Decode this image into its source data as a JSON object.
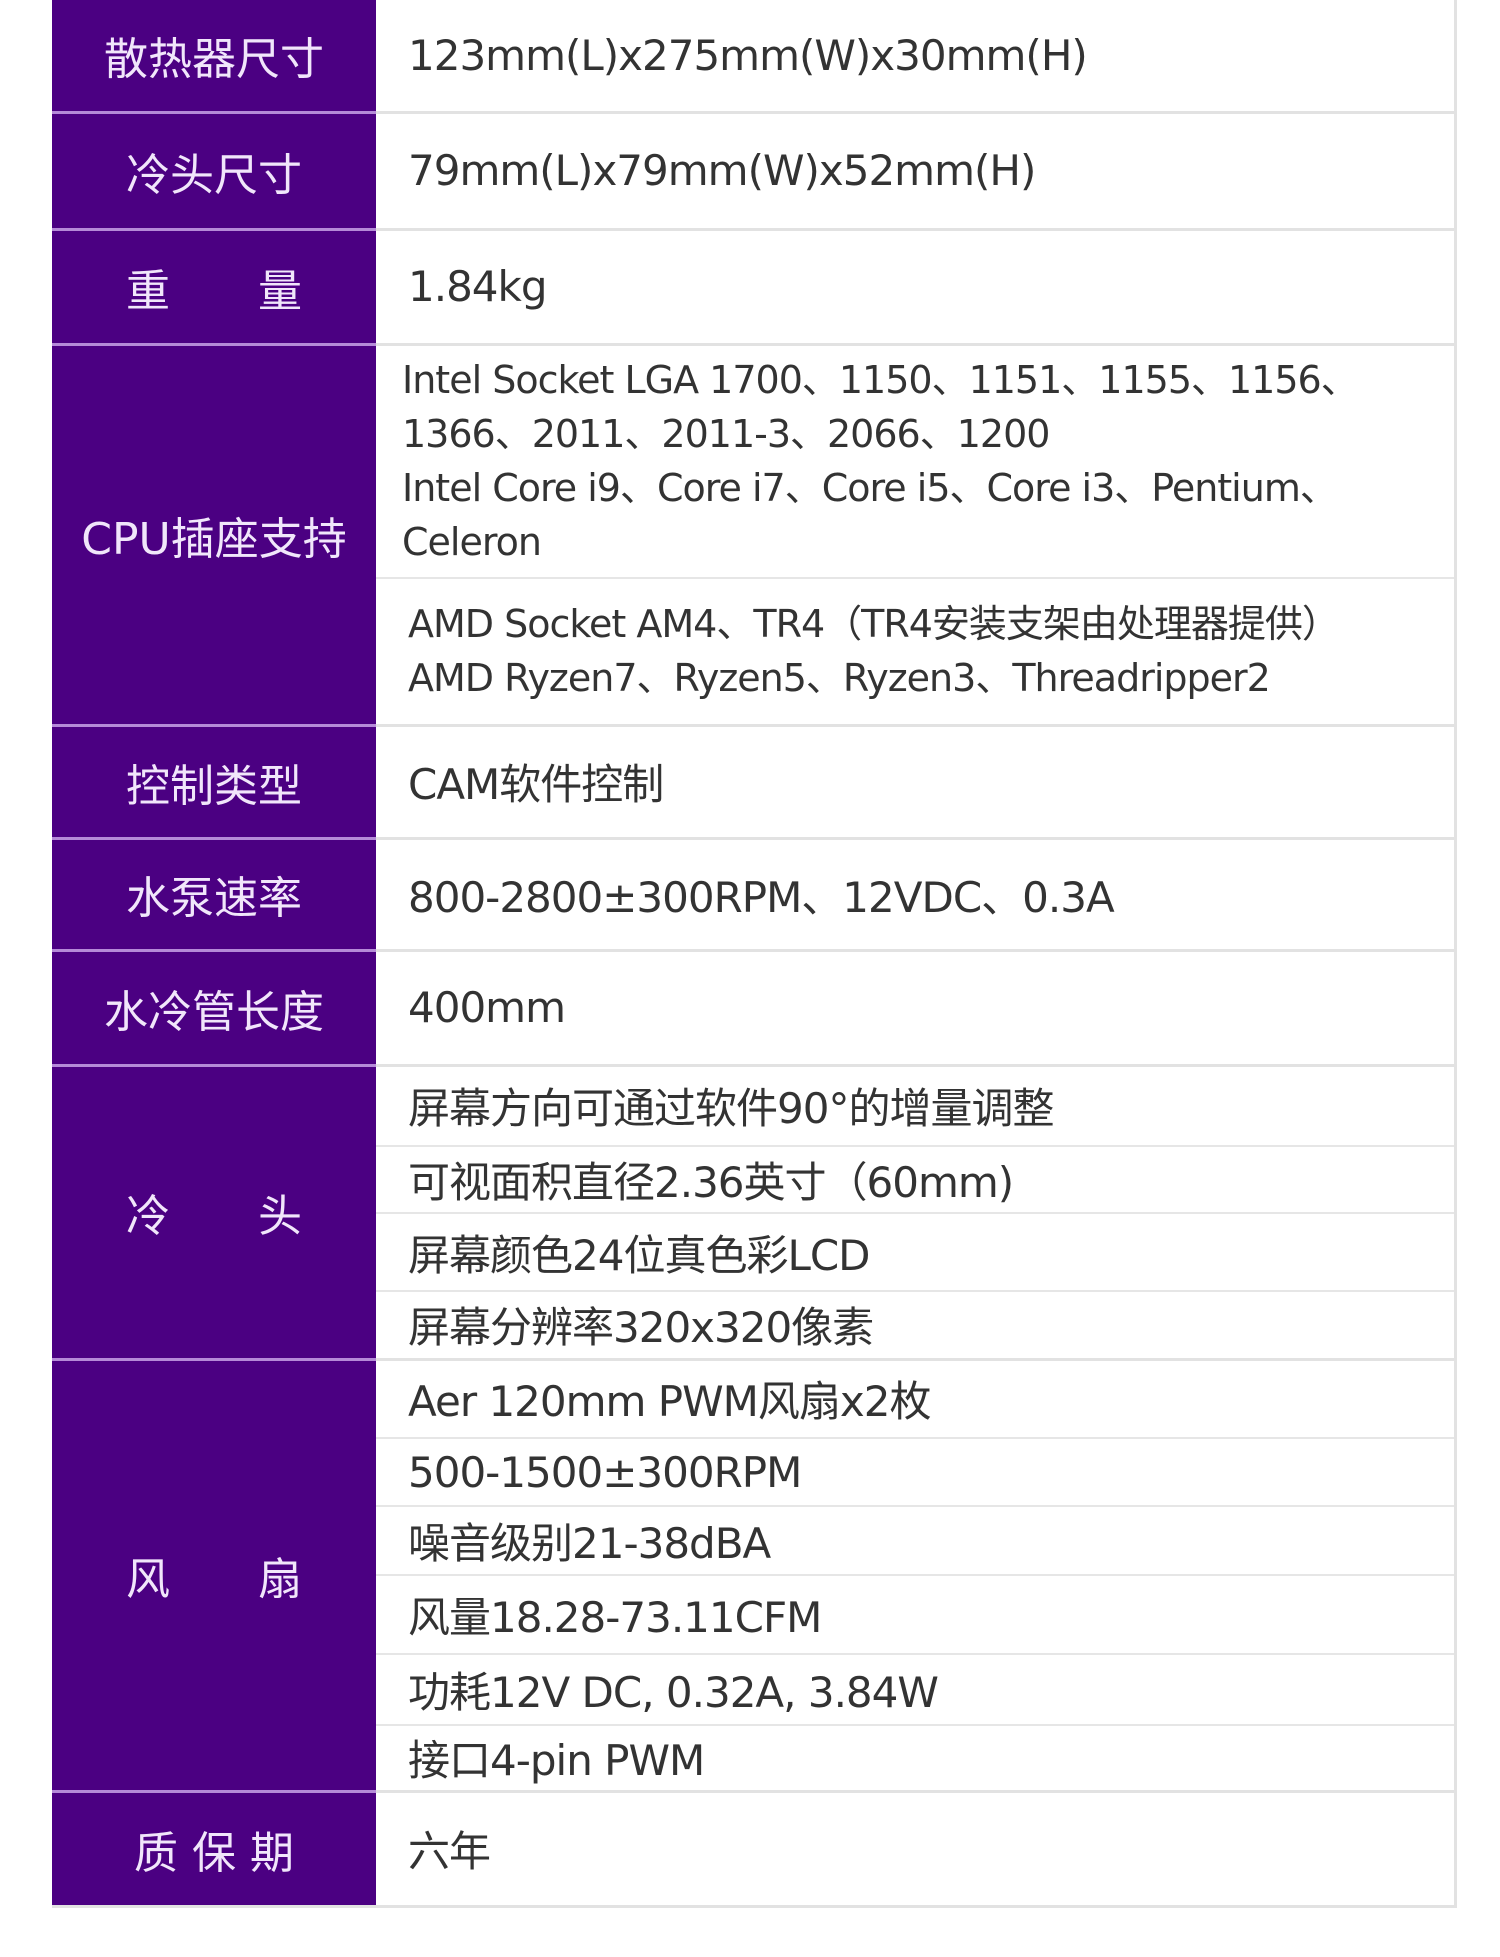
{
  "colors": {
    "label_bg": "#4b0082",
    "label_text": "#f1e6fb",
    "value_text": "#333333"
  },
  "rows": [
    {
      "label": "散热器尺寸",
      "values": [
        "123mm(L)x275mm(W)x30mm(H)"
      ]
    },
    {
      "label": "冷头尺寸",
      "values": [
        "79mm(L)x79mm(W)x52mm(H)"
      ]
    },
    {
      "label": "重　　量",
      "values": [
        "1.84kg"
      ]
    },
    {
      "label": "CPU插座支持",
      "values": [
        "Intel  Socket  LGA 1700、1150、1151、1155、1156、",
        "1366、2011、2011-3、2066、1200",
        "Intel Core i9、Core i7、Core i5、Core i3、Pentium、",
        "Celeron",
        "AMD Socket AM4、TR4（TR4安装支架由处理器提供）",
        "AMD Ryzen7、Ryzen5、Ryzen3、Threadripper2"
      ]
    },
    {
      "label": "控制类型",
      "values": [
        "CAM软件控制"
      ]
    },
    {
      "label": "水泵速率",
      "values": [
        "800-2800±300RPM、12VDC、0.3A"
      ]
    },
    {
      "label": "水冷管长度",
      "values": [
        "400mm"
      ]
    },
    {
      "label": "冷　　头",
      "values": [
        "屏幕方向可通过软件90°的增量调整",
        "可视面积直径2.36英寸（60mm)",
        "屏幕颜色24位真色彩LCD",
        "屏幕分辨率320x320像素"
      ]
    },
    {
      "label": "风　　扇",
      "values": [
        "Aer 120mm  PWM风扇x2枚",
        "500-1500±300RPM",
        "噪音级别21-38dBA",
        "风量18.28-73.11CFM",
        "功耗12V DC, 0.32A, 3.84W",
        "接口4-pin PWM"
      ]
    },
    {
      "label": "质 保 期",
      "values": [
        "六年"
      ]
    }
  ]
}
